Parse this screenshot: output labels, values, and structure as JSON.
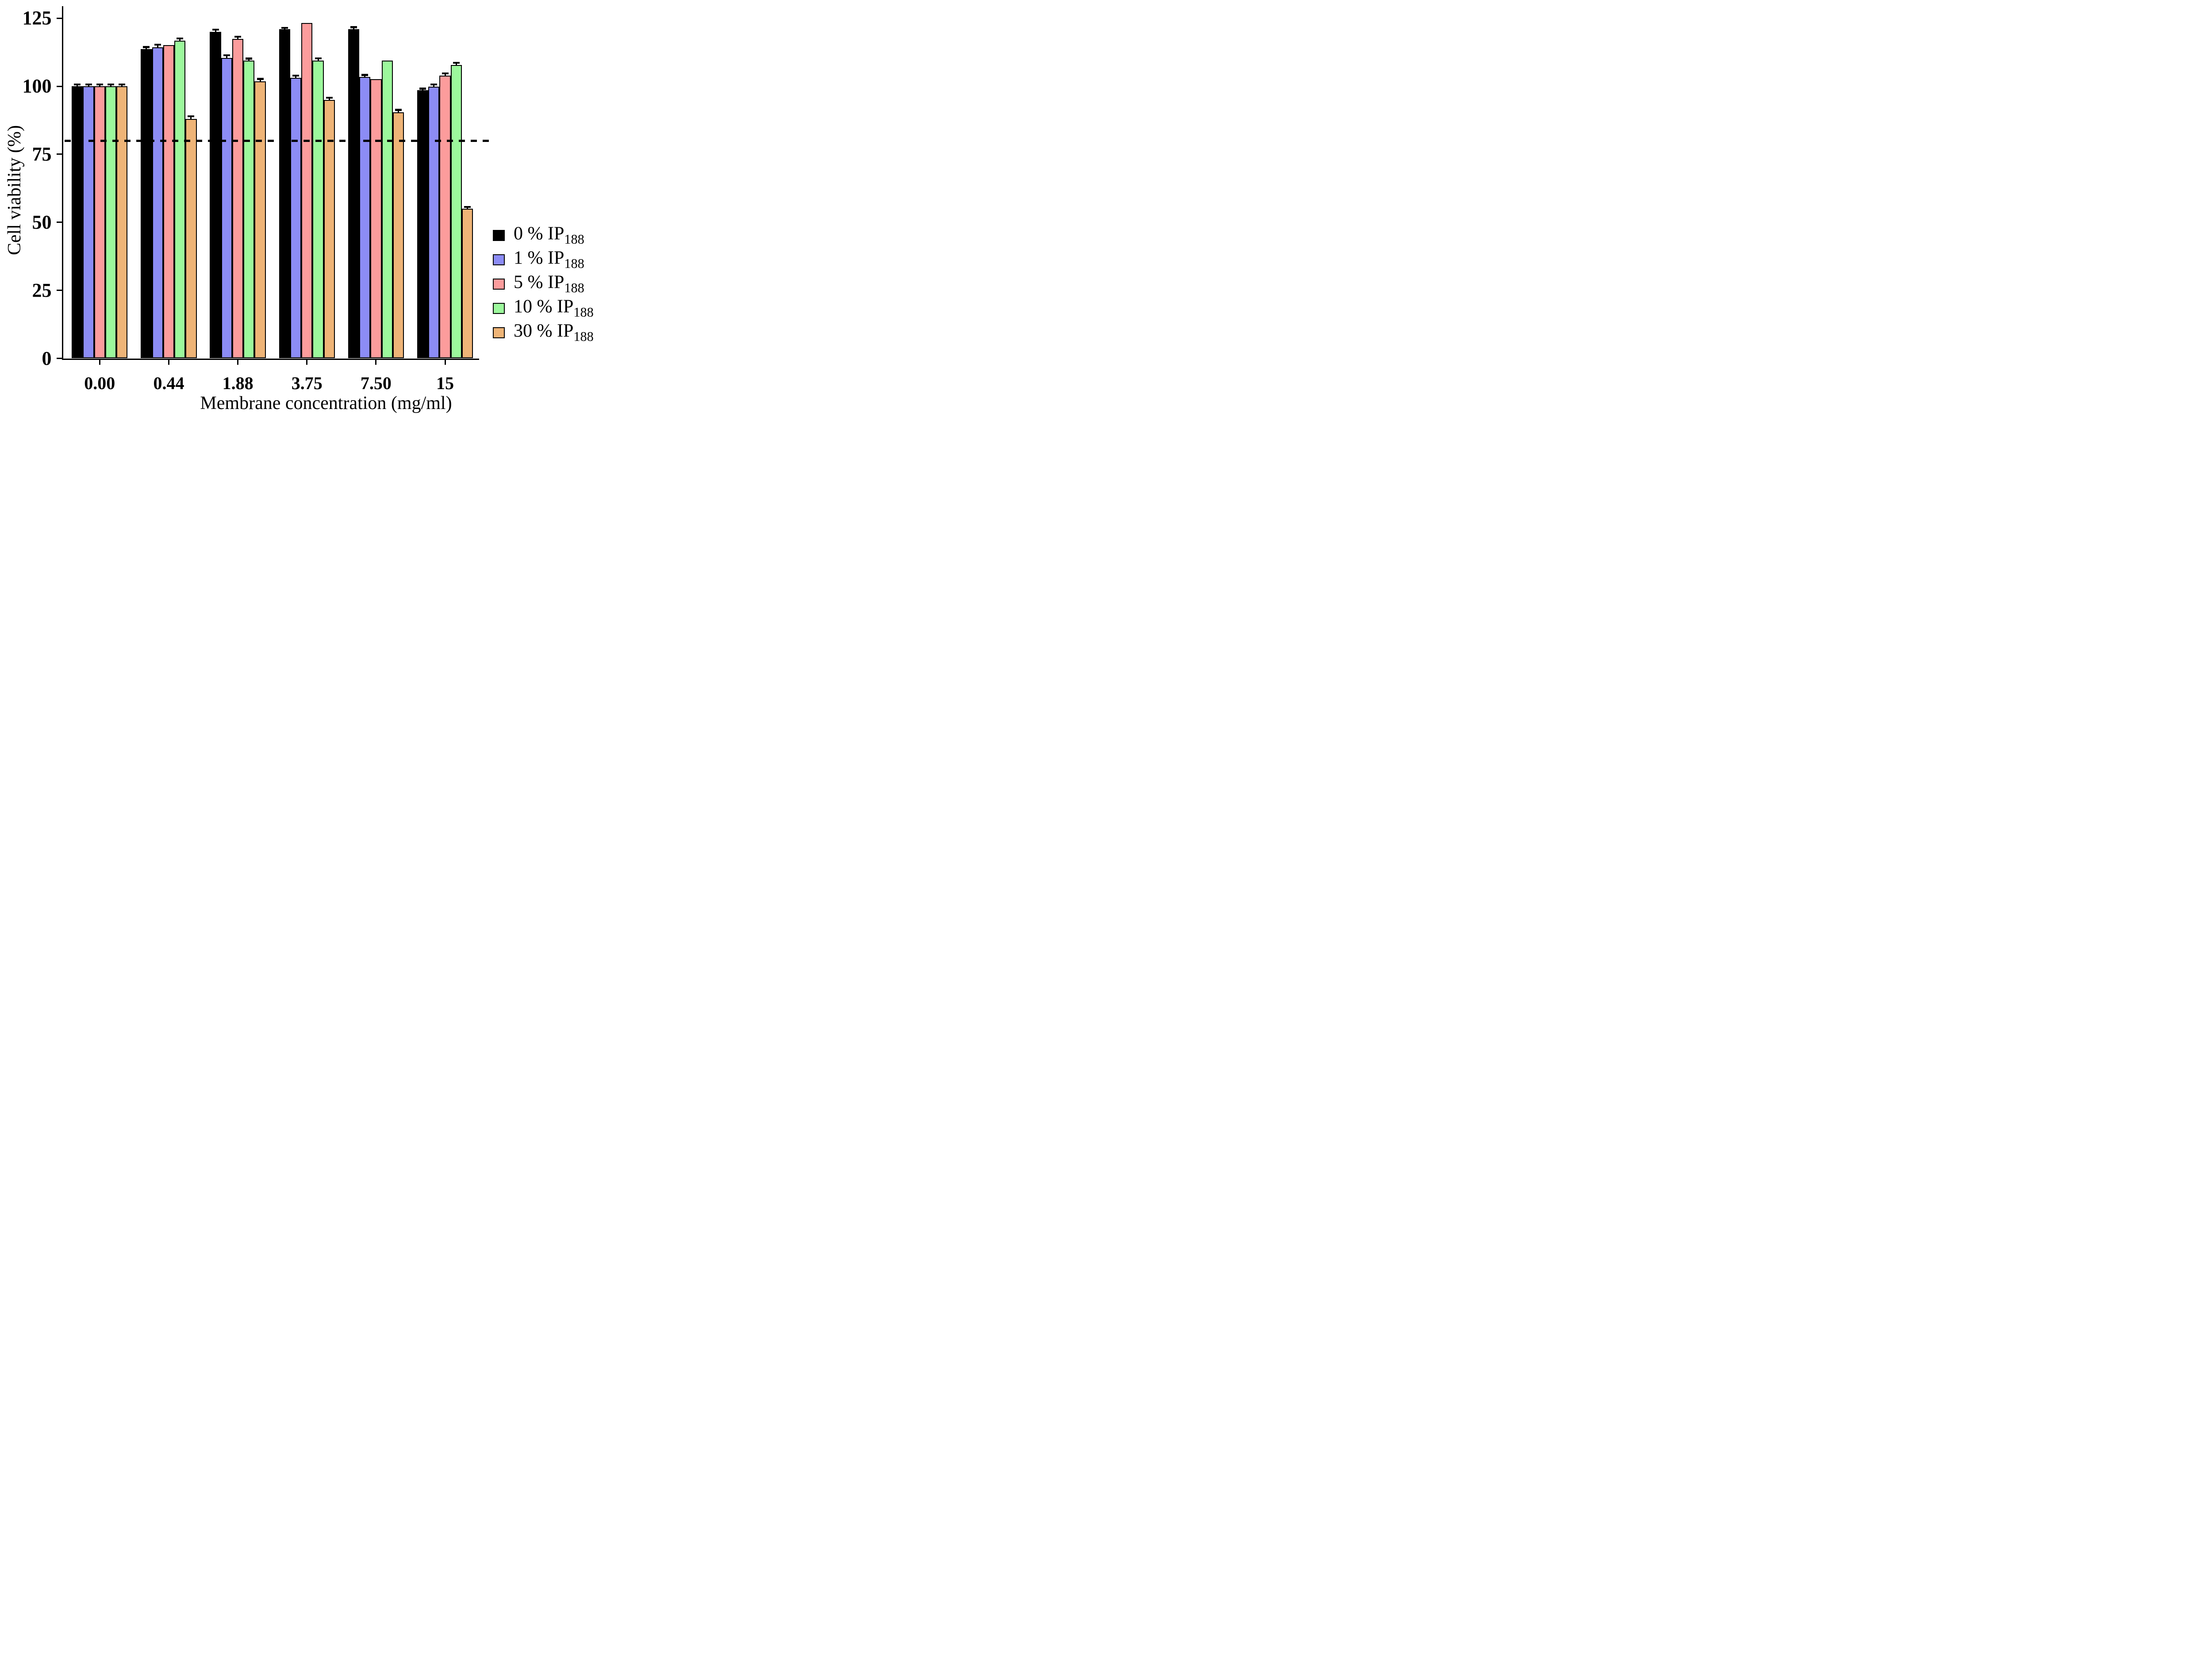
{
  "figure": {
    "background": "#ffffff"
  },
  "y_axis": {
    "title": "Cell viability (%)",
    "tick_labels": [
      "0",
      "25",
      "50",
      "75",
      "100",
      "125"
    ]
  },
  "x_axis": {
    "title": "Membrane concentration (mg/ml)",
    "tick_labels": [
      "0.00",
      "0.44",
      "1.88",
      "3.75",
      "7.50",
      "15"
    ]
  },
  "threshold_line": {
    "value": 80,
    "style": "dashed",
    "color": "#000000"
  },
  "legend": {
    "items": [
      {
        "prefix": "0 % IP",
        "sub": "188",
        "color": "#000000"
      },
      {
        "prefix": "1 % IP",
        "sub": "188",
        "color": "#8c8cf5"
      },
      {
        "prefix": "5 % IP",
        "sub": "188",
        "color": "#fc9c9c"
      },
      {
        "prefix": "10 % IP",
        "sub": "188",
        "color": "#9cf89c"
      },
      {
        "prefix": "30 % IP",
        "sub": "188",
        "color": "#eeb477"
      }
    ]
  },
  "chart_data": {
    "type": "bar",
    "title": "",
    "xlabel": "Membrane concentration (mg/ml)",
    "ylabel": "Cell viability (%)",
    "ylim": [
      0,
      125
    ],
    "yticks": [
      0,
      25,
      50,
      75,
      100,
      125
    ],
    "grid": false,
    "legend_position": "inside-right",
    "threshold_dashed_line_y": 80,
    "categories": [
      "0.00",
      "0.44",
      "1.88",
      "3.75",
      "7.50",
      "15"
    ],
    "series": [
      {
        "name": "0 % IP188",
        "color": "#000000",
        "values": [
          100,
          113.7,
          120.0,
          121.0,
          121.0,
          98.6
        ],
        "errors": [
          0.7,
          0.7,
          0.8,
          0.5,
          0.7,
          0.5
        ]
      },
      {
        "name": "1 % IP188",
        "color": "#8c8cf5",
        "values": [
          100,
          114.4,
          110.5,
          103.1,
          103.4,
          99.9
        ],
        "errors": [
          0.7,
          0.9,
          0.9,
          0.8,
          0.8,
          0.8
        ]
      },
      {
        "name": "5 % IP188",
        "color": "#fc9c9c",
        "values": [
          100,
          115.1,
          117.4,
          123.2,
          102.7,
          103.9
        ],
        "errors": [
          0.7,
          0,
          0.8,
          0,
          0,
          0.8
        ]
      },
      {
        "name": "10 % IP188",
        "color": "#9cf89c",
        "values": [
          100,
          116.8,
          109.4,
          109.4,
          109.4,
          107.8
        ],
        "errors": [
          0.7,
          0.8,
          0.8,
          0.9,
          0,
          0.8
        ]
      },
      {
        "name": "30 % IP188",
        "color": "#eeb477",
        "values": [
          100,
          88.0,
          101.8,
          95.0,
          90.5,
          55.0
        ],
        "errors": [
          0.7,
          1.0,
          0.9,
          0.8,
          0.8,
          0.7
        ]
      }
    ]
  }
}
